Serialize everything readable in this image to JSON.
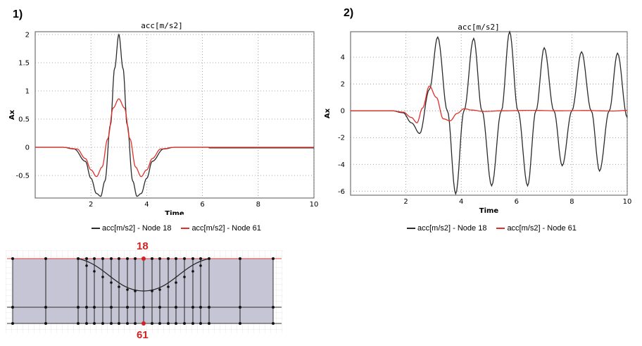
{
  "panels": [
    {
      "label": "1)"
    },
    {
      "label": "2)"
    }
  ],
  "colors": {
    "node18": "#2b2b2b",
    "node61": "#e0302a",
    "plot_bg": "#ffffff",
    "mesh_fill": "#c5c5d5",
    "node_marker": "#d42020"
  },
  "chart_data": [
    {
      "type": "line",
      "title": "acc[m/s2]",
      "xlabel": "Time",
      "ylabel": "Ax",
      "xlim": [
        0,
        10
      ],
      "ylim": [
        -0.9,
        2.05
      ],
      "xticks": [
        2,
        4,
        6,
        8,
        10
      ],
      "yticks": [
        -0.5,
        0,
        0.5,
        1,
        1.5,
        2
      ],
      "ytick_labels": [
        "-0.5",
        "0",
        "0.5",
        "1",
        "1.5",
        "2"
      ],
      "grid": true,
      "legend_position": "bottom",
      "series": [
        {
          "name": "acc[m/s2] - Node 18",
          "color": "#2b2b2b",
          "x": [
            0,
            1.0,
            1.4,
            1.8,
            2.0,
            2.2,
            2.35,
            2.5,
            2.7,
            2.85,
            3.0,
            3.15,
            3.3,
            3.5,
            3.65,
            3.8,
            4.0,
            4.2,
            4.6,
            5.0,
            5.5,
            6.2,
            6.25,
            7,
            8,
            9,
            10
          ],
          "y": [
            0,
            0,
            -0.03,
            -0.25,
            -0.55,
            -0.82,
            -0.87,
            -0.6,
            0.4,
            1.4,
            2.0,
            1.4,
            0.4,
            -0.6,
            -0.87,
            -0.82,
            -0.55,
            -0.25,
            -0.03,
            0,
            0,
            0,
            -0.01,
            -0.01,
            -0.01,
            -0.01,
            -0.01
          ]
        },
        {
          "name": "acc[m/s2] - Node 61",
          "color": "#e0302a",
          "x": [
            0,
            1.0,
            1.5,
            1.8,
            2.0,
            2.2,
            2.4,
            2.6,
            2.8,
            3.0,
            3.2,
            3.4,
            3.6,
            3.8,
            4.0,
            4.2,
            4.5,
            5.0,
            6.2,
            10
          ],
          "y": [
            0,
            0,
            -0.03,
            -0.2,
            -0.4,
            -0.52,
            -0.35,
            0.15,
            0.7,
            0.86,
            0.7,
            0.15,
            -0.35,
            -0.52,
            -0.4,
            -0.2,
            -0.03,
            0,
            0,
            0
          ]
        }
      ]
    },
    {
      "type": "line",
      "title": "acc[m/s2]",
      "xlabel": "Time",
      "ylabel": "Ax",
      "xlim": [
        0,
        10
      ],
      "ylim": [
        -6.3,
        5.9
      ],
      "xticks": [
        2,
        4,
        6,
        8,
        10
      ],
      "yticks": [
        -6,
        -4,
        -2,
        0,
        2,
        4
      ],
      "ytick_labels": [
        "-6",
        "-4",
        "-2",
        "0",
        "2",
        "4"
      ],
      "grid": true,
      "legend_position": "bottom",
      "series": [
        {
          "name": "acc[m/s2] - Node 18",
          "color": "#2b2b2b",
          "x": [
            0,
            1.5,
            1.9,
            2.2,
            2.5,
            2.85,
            3.15,
            3.5,
            3.8,
            4.1,
            4.45,
            4.75,
            5.1,
            5.45,
            5.75,
            6.05,
            6.4,
            6.7,
            7.0,
            7.35,
            7.65,
            8.0,
            8.35,
            8.7,
            9.0,
            9.35,
            9.65,
            10
          ],
          "y": [
            0,
            0,
            -0.15,
            -0.9,
            -1.7,
            1.6,
            5.5,
            0,
            -6.2,
            0,
            5.4,
            0,
            -5.6,
            0,
            5.9,
            0,
            -5.6,
            0,
            4.7,
            0,
            -4.1,
            0,
            4.4,
            0,
            -4.5,
            0,
            4.3,
            -0.5
          ]
        },
        {
          "name": "acc[m/s2] - Node 61",
          "color": "#e0302a",
          "x": [
            0,
            1.5,
            1.9,
            2.2,
            2.4,
            2.6,
            2.85,
            3.1,
            3.35,
            3.6,
            3.85,
            4.1,
            4.4,
            4.8,
            5.5,
            6.5,
            7.5,
            8.5,
            9.5,
            10
          ],
          "y": [
            0,
            0,
            -0.1,
            -0.5,
            -0.9,
            0.2,
            1.85,
            1.0,
            -0.6,
            -0.75,
            -0.2,
            0.15,
            0.05,
            -0.05,
            0,
            0.03,
            0,
            0.02,
            -0.02,
            0.03
          ]
        }
      ]
    }
  ],
  "mesh": {
    "top_node": "18",
    "bottom_node": "61"
  }
}
